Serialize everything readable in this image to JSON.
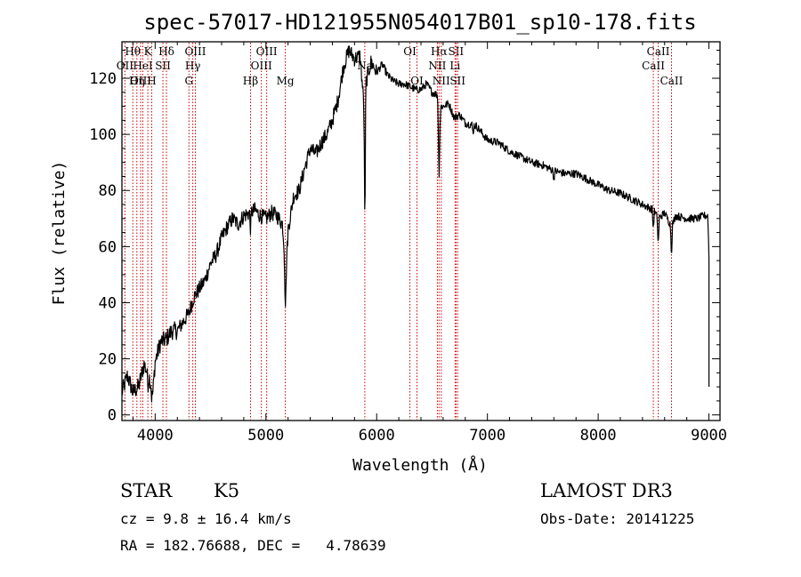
{
  "chart_data": {
    "type": "line",
    "title": "spec-57017-HD121955N054017B01_sp10-178.fits",
    "xlabel": "Wavelength (Å)",
    "ylabel": "Flux (relative)",
    "xlim": [
      3700,
      9100
    ],
    "ylim": [
      -2,
      133
    ],
    "x_ticks": [
      4000,
      5000,
      6000,
      7000,
      8000,
      9000
    ],
    "y_ticks": [
      0,
      20,
      40,
      60,
      80,
      100,
      120
    ],
    "series": [
      {
        "name": "spectrum",
        "x": [
          3700,
          3750,
          3800,
          3850,
          3900,
          3950,
          3980,
          4000,
          4050,
          4100,
          4150,
          4200,
          4250,
          4300,
          4350,
          4400,
          4450,
          4500,
          4550,
          4600,
          4650,
          4700,
          4750,
          4800,
          4850,
          4900,
          4950,
          5000,
          5050,
          5100,
          5150,
          5180,
          5200,
          5250,
          5300,
          5350,
          5400,
          5450,
          5500,
          5550,
          5600,
          5650,
          5700,
          5750,
          5800,
          5850,
          5890,
          5895,
          5900,
          5950,
          6000,
          6050,
          6100,
          6150,
          6200,
          6250,
          6300,
          6350,
          6400,
          6450,
          6500,
          6550,
          6563,
          6580,
          6600,
          6650,
          6700,
          6750,
          6800,
          6900,
          7000,
          7100,
          7200,
          7300,
          7400,
          7500,
          7600,
          7700,
          7800,
          7900,
          8000,
          8100,
          8200,
          8300,
          8400,
          8500,
          8542,
          8600,
          8662,
          8700,
          8800,
          8900,
          8950,
          8990,
          9000
        ],
        "y": [
          8,
          14,
          8,
          10,
          18,
          13,
          8,
          19,
          26,
          27,
          30,
          30,
          33,
          36,
          42,
          45,
          48,
          54,
          57,
          63,
          67,
          70,
          68,
          71,
          72,
          73,
          71,
          70,
          72,
          71,
          68,
          50,
          66,
          78,
          80,
          88,
          95,
          93,
          97,
          100,
          105,
          112,
          124,
          130,
          127,
          128,
          108,
          92,
          118,
          126,
          122,
          125,
          121,
          119,
          118,
          118,
          117,
          116,
          116,
          118,
          115,
          114,
          98,
          110,
          110,
          111,
          106,
          107,
          104,
          103,
          98,
          97,
          94,
          92,
          90,
          89,
          87,
          86,
          86,
          84,
          82,
          80,
          79,
          77,
          75,
          73,
          70,
          72,
          67,
          71,
          70,
          70,
          71,
          71,
          56
        ]
      }
    ],
    "line_markers": [
      {
        "name": "Hθ",
        "x": 3798,
        "row": 0
      },
      {
        "name": "OII",
        "x": 3727,
        "row": 1
      },
      {
        "name": "OIII",
        "x": 3869,
        "row": 2
      },
      {
        "name": "Hη",
        "x": 3835,
        "row": 2
      },
      {
        "name": "K",
        "x": 3934,
        "row": 0
      },
      {
        "name": "HeI",
        "x": 3889,
        "row": 1
      },
      {
        "name": "H",
        "x": 3969,
        "row": 2
      },
      {
        "name": "SII",
        "x": 4070,
        "row": 1
      },
      {
        "name": "Hδ",
        "x": 4102,
        "row": 0
      },
      {
        "name": "OIII",
        "x": 4363,
        "row": 0
      },
      {
        "name": "Hγ",
        "x": 4340,
        "row": 1
      },
      {
        "name": "G",
        "x": 4305,
        "row": 2
      },
      {
        "name": "Hβ",
        "x": 4861,
        "row": 2
      },
      {
        "name": "OIII",
        "x": 5007,
        "row": 0
      },
      {
        "name": "OIII",
        "x": 4959,
        "row": 1
      },
      {
        "name": "Mg",
        "x": 5175,
        "row": 2
      },
      {
        "name": "Na",
        "x": 5893,
        "row": 1
      },
      {
        "name": "OI",
        "x": 6300,
        "row": 0
      },
      {
        "name": "OI",
        "x": 6364,
        "row": 2
      },
      {
        "name": "Hα",
        "x": 6563,
        "row": 0
      },
      {
        "name": "NII",
        "x": 6548,
        "row": 1
      },
      {
        "name": "NII",
        "x": 6583,
        "row": 2
      },
      {
        "name": "SII",
        "x": 6716,
        "row": 0
      },
      {
        "name": "Li",
        "x": 6708,
        "row": 1
      },
      {
        "name": "SII",
        "x": 6731,
        "row": 2
      },
      {
        "name": "CaII",
        "x": 8542,
        "row": 0
      },
      {
        "name": "CaII",
        "x": 8498,
        "row": 1
      },
      {
        "name": "CaII",
        "x": 8662,
        "row": 2
      }
    ],
    "colors": {
      "spectrum": "#000000",
      "markers": "#cc0000",
      "axes": "#000000"
    }
  },
  "info": {
    "object_class": "STAR",
    "subclass": "K5",
    "survey": "LAMOST DR3",
    "redshift": "cz = 9.8 ± 16.4 km/s",
    "obs_date": "Obs-Date: 20141225",
    "coords": "RA = 182.76688, DEC =   4.78639"
  }
}
